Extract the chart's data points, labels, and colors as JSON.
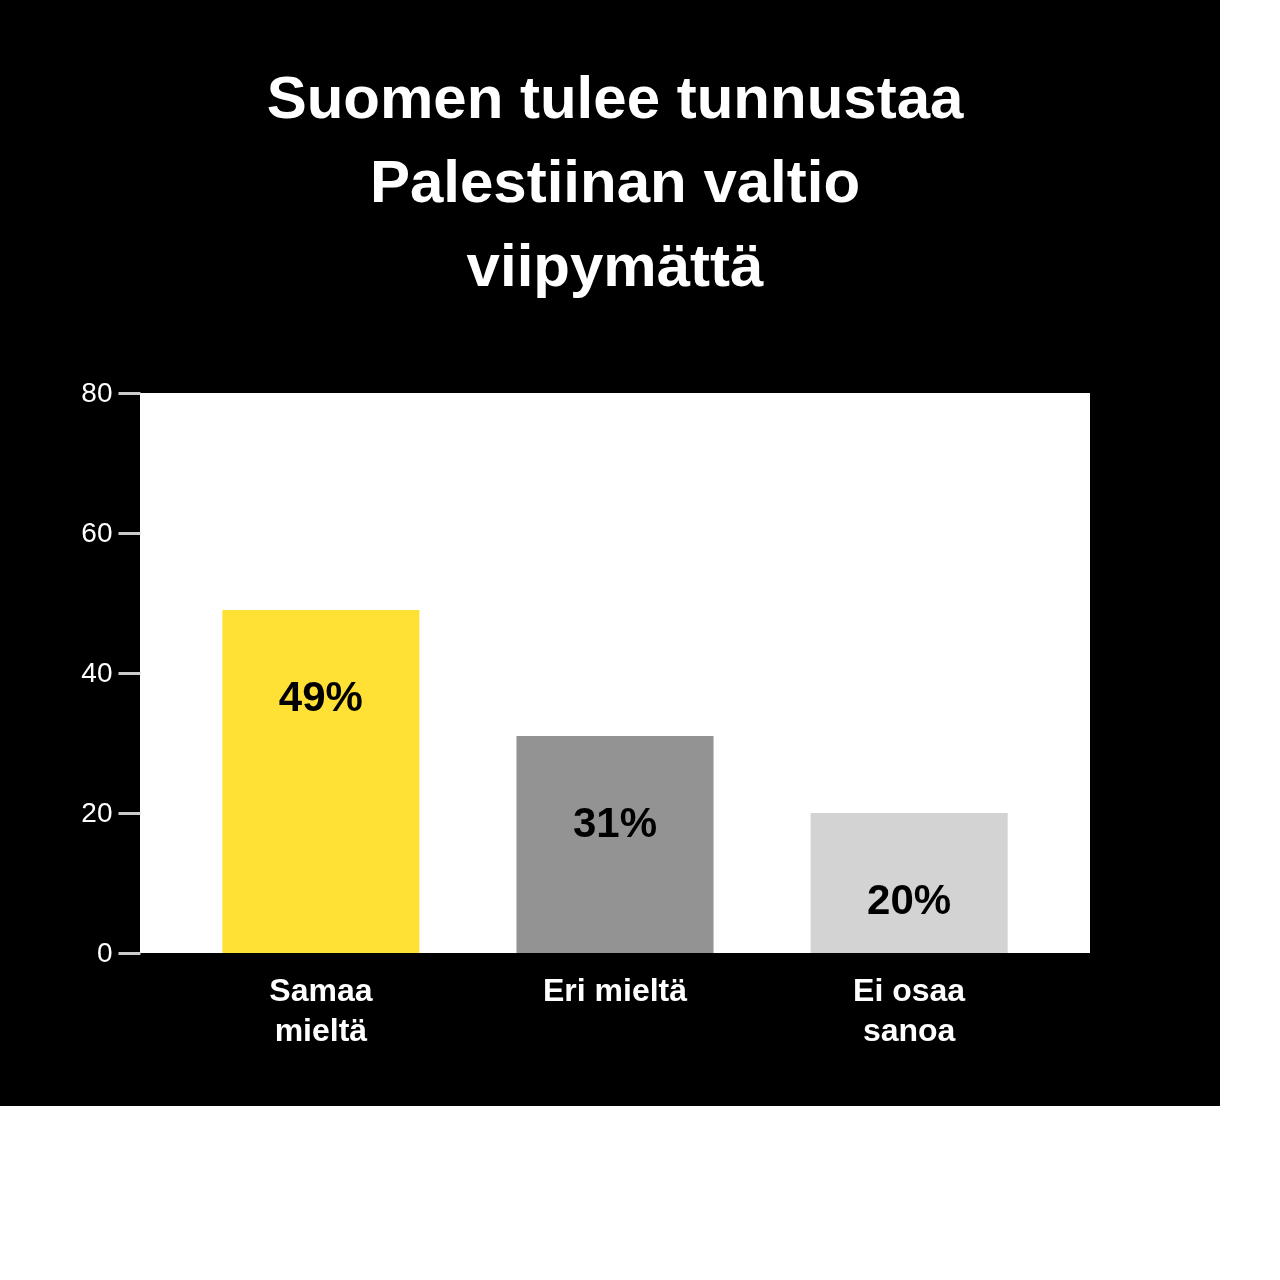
{
  "chart_data": {
    "type": "bar",
    "title": [
      "Suomen tulee tunnustaa",
      "Palestiinan valtio",
      "viipymättä"
    ],
    "categories": [
      "Samaa mieltä",
      "Eri mieltä",
      "Ei osaa sanoa"
    ],
    "values": [
      49,
      31,
      20
    ],
    "colors": [
      "#ffe135",
      "#939393",
      "#d3d3d3"
    ],
    "value_labels": [
      "49%",
      "31%",
      "20%"
    ],
    "ylim": [
      0,
      80
    ],
    "yticks": [
      0,
      20,
      40,
      60,
      80
    ],
    "grid": false
  }
}
